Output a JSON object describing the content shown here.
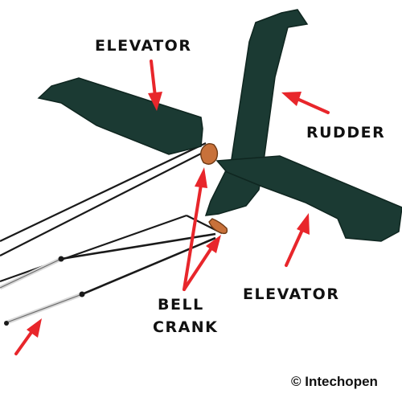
{
  "labels": {
    "elevator_top": "ELEVATOR",
    "rudder": "RUDDER",
    "elevator_bottom": "ELEVATOR",
    "bell": "BELL",
    "crank": "CRANK"
  },
  "credit": "© Intechopen",
  "colors": {
    "surface": "#1b3a33",
    "surface_edge": "#0f2620",
    "arrow": "#e8262b",
    "bellcrank": "#c8713a",
    "cable": "#1a1a1a",
    "rod_highlight": "#d9d9d9"
  }
}
